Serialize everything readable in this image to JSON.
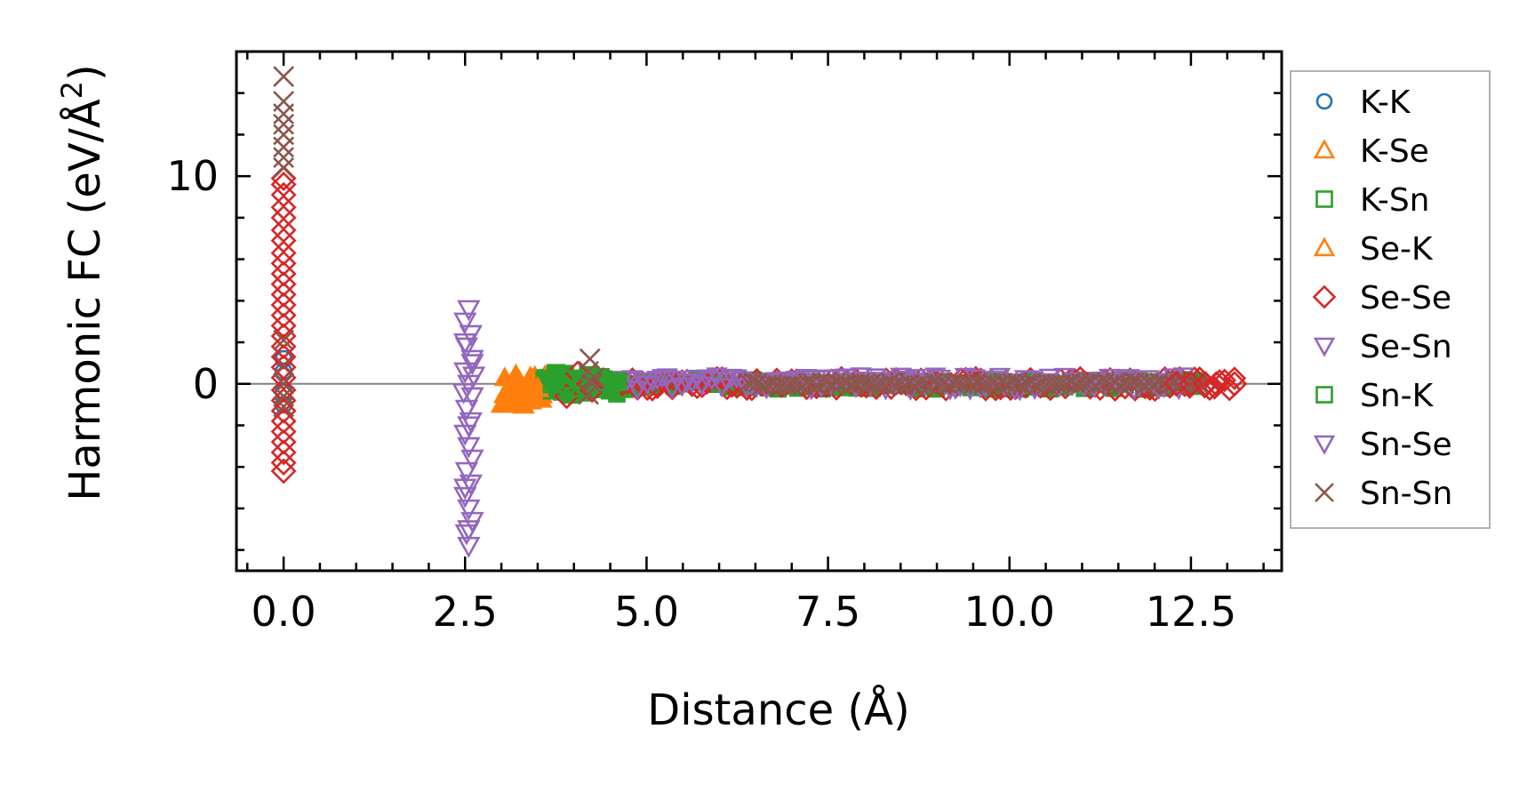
{
  "chart_data": {
    "type": "scatter",
    "xlabel": "Distance (Å)",
    "ylabel_main": "Harmonic FC (eV/Å",
    "ylabel_sup": "2",
    "ylabel_close": ")",
    "xlim": [
      -0.65,
      13.75
    ],
    "ylim": [
      -9.0,
      16.0
    ],
    "x_ticks": [
      0.0,
      2.5,
      5.0,
      7.5,
      10.0,
      12.5
    ],
    "x_tick_labels": [
      "0.0",
      "2.5",
      "5.0",
      "7.5",
      "10.0",
      "12.5"
    ],
    "y_ticks": [
      0,
      10
    ],
    "y_tick_labels": [
      "0",
      "10"
    ],
    "zero_line": 0,
    "legend_position": "outside-right",
    "series": [
      {
        "name": "K-K",
        "marker": "circle",
        "color": "#1f77b4",
        "filled": false,
        "points": [
          [
            0.0,
            0.6
          ],
          [
            0.0,
            -0.4
          ],
          [
            0.0,
            1.2
          ],
          [
            0.0,
            -1.0
          ]
        ]
      },
      {
        "name": "K-Se",
        "marker": "triangle-up",
        "color": "#ff7f0e",
        "filled": true,
        "points": [
          [
            3.05,
            -0.5
          ],
          [
            3.1,
            -0.9
          ],
          [
            3.15,
            -0.2
          ],
          [
            3.2,
            -0.6
          ],
          [
            3.25,
            0.1
          ],
          [
            3.3,
            -0.4
          ],
          [
            3.35,
            -0.7
          ],
          [
            3.4,
            0.3
          ],
          [
            3.45,
            -0.3
          ],
          [
            3.5,
            0.0
          ],
          [
            3.55,
            -0.5
          ],
          [
            3.6,
            0.2
          ],
          [
            3.65,
            -0.1
          ],
          [
            3.3,
            -1.0
          ],
          [
            3.2,
            0.4
          ],
          [
            3.4,
            -0.8
          ]
        ]
      },
      {
        "name": "K-Sn",
        "marker": "square",
        "color": "#2ca02c",
        "filled": true,
        "points": [
          [
            3.6,
            0.2
          ],
          [
            3.7,
            -0.3
          ],
          [
            3.8,
            0.3
          ],
          [
            3.9,
            -0.2
          ],
          [
            4.0,
            0.1
          ],
          [
            4.1,
            -0.4
          ],
          [
            4.2,
            0.4
          ],
          [
            4.3,
            -0.1
          ],
          [
            4.4,
            0.2
          ],
          [
            4.5,
            -0.3
          ],
          [
            4.6,
            0.1
          ],
          [
            3.75,
            0.5
          ],
          [
            3.95,
            -0.5
          ],
          [
            4.15,
            0.0
          ],
          [
            4.35,
            0.3
          ]
        ]
      },
      {
        "name": "Se-K",
        "marker": "triangle-up",
        "color": "#ff7f0e",
        "filled": true,
        "points": [
          [
            3.1,
            -0.3
          ],
          [
            3.2,
            0.2
          ],
          [
            3.3,
            -0.6
          ],
          [
            3.4,
            0.0
          ],
          [
            3.5,
            -0.2
          ]
        ]
      },
      {
        "name": "Se-Se",
        "marker": "diamond",
        "color": "#d62728",
        "filled": false,
        "points": [
          [
            0.0,
            -4.2
          ],
          [
            0.0,
            -3.8
          ],
          [
            0.0,
            -3.3
          ],
          [
            0.0,
            -2.8
          ],
          [
            0.0,
            -2.3
          ],
          [
            0.0,
            -1.8
          ],
          [
            0.0,
            -1.3
          ],
          [
            0.0,
            -0.8
          ],
          [
            0.0,
            -0.3
          ],
          [
            0.0,
            0.3
          ],
          [
            0.0,
            0.8
          ],
          [
            0.0,
            1.3
          ],
          [
            0.0,
            1.8
          ],
          [
            0.0,
            2.3
          ],
          [
            0.0,
            2.8
          ],
          [
            0.0,
            3.3
          ],
          [
            0.0,
            3.8
          ],
          [
            0.0,
            4.3
          ],
          [
            0.0,
            4.8
          ],
          [
            0.0,
            5.3
          ],
          [
            0.0,
            5.8
          ],
          [
            0.0,
            6.3
          ],
          [
            0.0,
            6.9
          ],
          [
            0.0,
            7.4
          ],
          [
            0.0,
            8.0
          ],
          [
            0.0,
            8.5
          ],
          [
            0.0,
            9.1
          ],
          [
            0.0,
            9.6
          ],
          [
            0.0,
            9.9
          ],
          [
            3.9,
            -0.6
          ],
          [
            4.05,
            0.5
          ],
          [
            4.25,
            -0.3
          ],
          [
            12.3,
            0.0
          ],
          [
            12.5,
            0.0
          ],
          [
            12.7,
            0.0
          ],
          [
            12.85,
            0.0
          ],
          [
            13.1,
            0.0
          ]
        ]
      },
      {
        "name": "Se-Sn",
        "marker": "triangle-down",
        "color": "#9467bd",
        "filled": false,
        "points": [
          [
            2.55,
            3.6
          ],
          [
            2.5,
            3.0
          ],
          [
            2.58,
            2.4
          ],
          [
            2.52,
            1.8
          ],
          [
            2.6,
            1.2
          ],
          [
            2.5,
            0.6
          ],
          [
            2.55,
            0.0
          ],
          [
            2.6,
            -0.6
          ],
          [
            2.52,
            -1.2
          ],
          [
            2.58,
            -1.8
          ],
          [
            2.5,
            -2.4
          ],
          [
            2.55,
            -3.0
          ],
          [
            2.6,
            -3.6
          ],
          [
            2.52,
            -4.2
          ],
          [
            2.58,
            -4.8
          ],
          [
            2.5,
            -5.4
          ],
          [
            2.55,
            -6.0
          ],
          [
            2.6,
            -6.6
          ],
          [
            2.52,
            -7.2
          ],
          [
            2.55,
            -7.8
          ],
          [
            2.62,
            0.4
          ],
          [
            2.48,
            -0.4
          ]
        ]
      },
      {
        "name": "Sn-K",
        "marker": "square",
        "color": "#2ca02c",
        "filled": false,
        "points": [
          [
            3.7,
            0.0
          ],
          [
            3.9,
            0.2
          ],
          [
            4.1,
            -0.2
          ],
          [
            4.3,
            0.1
          ]
        ]
      },
      {
        "name": "Sn-Se",
        "marker": "triangle-down",
        "color": "#9467bd",
        "filled": false,
        "points": [
          [
            2.5,
            2.0
          ],
          [
            2.55,
            -2.0
          ],
          [
            2.6,
            1.0
          ],
          [
            2.5,
            -5.0
          ],
          [
            2.55,
            -7.0
          ]
        ]
      },
      {
        "name": "Sn-Sn",
        "marker": "x",
        "color": "#8c564b",
        "filled": false,
        "points": [
          [
            0.0,
            14.8
          ],
          [
            0.0,
            13.6
          ],
          [
            0.0,
            13.0
          ],
          [
            0.0,
            12.5
          ],
          [
            0.0,
            12.0
          ],
          [
            0.0,
            11.4
          ],
          [
            0.0,
            10.9
          ],
          [
            0.0,
            10.4
          ],
          [
            0.0,
            2.1
          ],
          [
            0.0,
            0.9
          ],
          [
            0.0,
            0.0
          ],
          [
            0.0,
            -0.6
          ],
          [
            0.0,
            -1.1
          ],
          [
            4.22,
            1.2
          ],
          [
            4.2,
            0.6
          ],
          [
            4.25,
            0.0
          ],
          [
            4.2,
            -0.5
          ],
          [
            4.28,
            0.3
          ]
        ]
      }
    ],
    "dense_bands": [
      {
        "series": "K-Se",
        "x": [
          3.0,
          3.6
        ],
        "ylim": [
          -1.0,
          0.4
        ]
      },
      {
        "series": "K-Sn",
        "x": [
          3.5,
          4.7
        ],
        "ylim": [
          -0.5,
          0.5
        ]
      },
      {
        "series": "K-Sn",
        "x": [
          4.7,
          12.6
        ],
        "ylim": [
          -0.25,
          0.2
        ]
      },
      {
        "series": "Se-Se",
        "x": [
          4.6,
          13.1
        ],
        "ylim": [
          -0.3,
          0.3
        ]
      },
      {
        "series": "Se-Sn",
        "x": [
          4.6,
          12.4
        ],
        "ylim": [
          -0.3,
          0.4
        ]
      },
      {
        "series": "Sn-Sn",
        "x": [
          6.4,
          12.6
        ],
        "ylim": [
          -0.1,
          0.1
        ]
      }
    ]
  }
}
